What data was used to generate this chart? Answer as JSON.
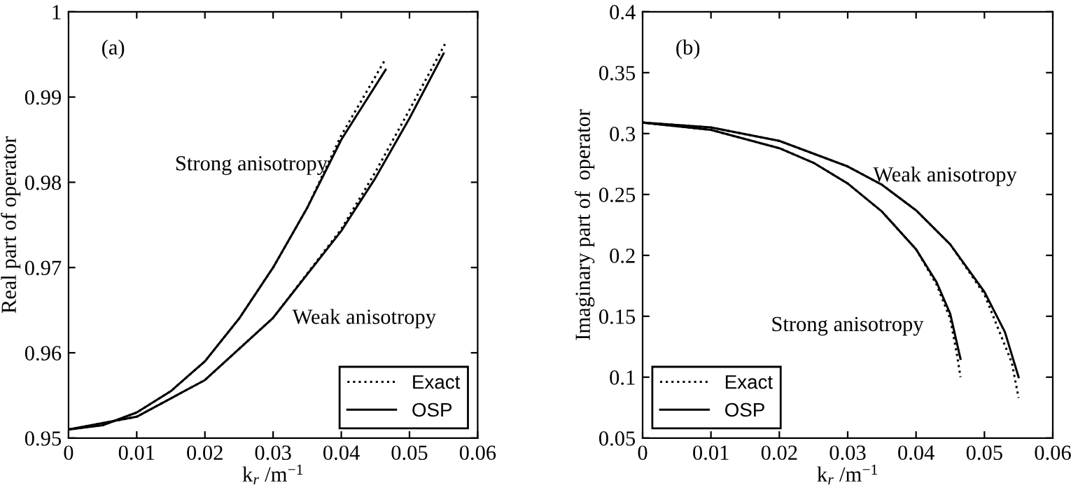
{
  "chart_data": [
    {
      "type": "line",
      "title": "(a)",
      "xlabel": "k$_{r}$ /m$^{−1}$",
      "ylabel": "Real part of operator",
      "xlim": [
        0,
        0.06
      ],
      "xticks": [
        0,
        0.01,
        0.02,
        0.03,
        0.04,
        0.05,
        0.06
      ],
      "ylim": [
        0.95,
        1
      ],
      "yticks": [
        0.95,
        0.96,
        0.97,
        0.98,
        0.99,
        1
      ],
      "grid": false,
      "legend": "bottom right",
      "series": [
        {
          "name": "Exact",
          "color": "#000000",
          "line_style": "dotted",
          "x": [
            0,
            0.005,
            0.01,
            0.015,
            0.02,
            0.025,
            0.03,
            0.035,
            0.04,
            0.0463
          ],
          "values": [
            0.951,
            0.9515,
            0.953,
            0.9555,
            0.959,
            0.964,
            0.97,
            0.977,
            0.9855,
            0.9942
          ]
        },
        {
          "name": "OSP",
          "color": "#000000",
          "line_style": "solid",
          "x": [
            0,
            0.005,
            0.01,
            0.015,
            0.02,
            0.025,
            0.03,
            0.035,
            0.04,
            0.0465
          ],
          "values": [
            0.951,
            0.9515,
            0.953,
            0.9555,
            0.959,
            0.964,
            0.97,
            0.977,
            0.985,
            0.9932
          ]
        },
        {
          "color": "#000000",
          "line_style": "dotted",
          "x": [
            0,
            0.01,
            0.02,
            0.03,
            0.04,
            0.045,
            0.05,
            0.0552
          ],
          "values": [
            0.951,
            0.9525,
            0.9568,
            0.9641,
            0.9745,
            0.9812,
            0.9885,
            0.9962
          ]
        },
        {
          "color": "#000000",
          "line_style": "solid",
          "x": [
            0,
            0.01,
            0.02,
            0.03,
            0.04,
            0.045,
            0.05,
            0.055
          ],
          "values": [
            0.951,
            0.9525,
            0.9568,
            0.9641,
            0.9743,
            0.9805,
            0.9875,
            0.9951
          ]
        }
      ],
      "annotations": [
        "Strong anisotropy",
        "Weak anisotropy"
      ]
    },
    {
      "type": "line",
      "title": "(b)",
      "xlabel": "k$_{r}$ /m$^{−1}$",
      "ylabel": "Imaginary part of  operator",
      "xlim": [
        0,
        0.06
      ],
      "xticks": [
        0,
        0.01,
        0.02,
        0.03,
        0.04,
        0.05,
        0.06
      ],
      "ylim": [
        0.05,
        0.4
      ],
      "yticks": [
        0.05,
        0.1,
        0.15,
        0.2,
        0.25,
        0.3,
        0.35,
        0.4
      ],
      "grid": false,
      "legend": "bottom left",
      "series": [
        {
          "name": "Exact",
          "color": "#000000",
          "line_style": "dotted",
          "x": [
            0,
            0.01,
            0.02,
            0.025,
            0.03,
            0.035,
            0.04,
            0.043,
            0.045,
            0.046,
            0.0465
          ],
          "values": [
            0.309,
            0.303,
            0.288,
            0.276,
            0.259,
            0.236,
            0.205,
            0.176,
            0.148,
            0.118,
            0.1
          ]
        },
        {
          "name": "OSP",
          "color": "#000000",
          "line_style": "solid",
          "x": [
            0,
            0.01,
            0.02,
            0.025,
            0.03,
            0.035,
            0.04,
            0.043,
            0.045,
            0.0465
          ],
          "values": [
            0.309,
            0.303,
            0.288,
            0.276,
            0.259,
            0.236,
            0.205,
            0.178,
            0.152,
            0.115
          ]
        },
        {
          "color": "#000000",
          "line_style": "dotted",
          "x": [
            0,
            0.01,
            0.02,
            0.03,
            0.035,
            0.04,
            0.045,
            0.05,
            0.052,
            0.054,
            0.055
          ],
          "values": [
            0.309,
            0.305,
            0.294,
            0.273,
            0.258,
            0.237,
            0.209,
            0.168,
            0.14,
            0.112,
            0.083
          ]
        },
        {
          "color": "#000000",
          "line_style": "solid",
          "x": [
            0,
            0.01,
            0.02,
            0.03,
            0.035,
            0.04,
            0.045,
            0.05,
            0.053,
            0.055
          ],
          "values": [
            0.309,
            0.305,
            0.294,
            0.273,
            0.258,
            0.237,
            0.209,
            0.17,
            0.137,
            0.1
          ]
        }
      ],
      "annotations": [
        "Weak anisotropy",
        "Strong anisotropy"
      ]
    }
  ]
}
